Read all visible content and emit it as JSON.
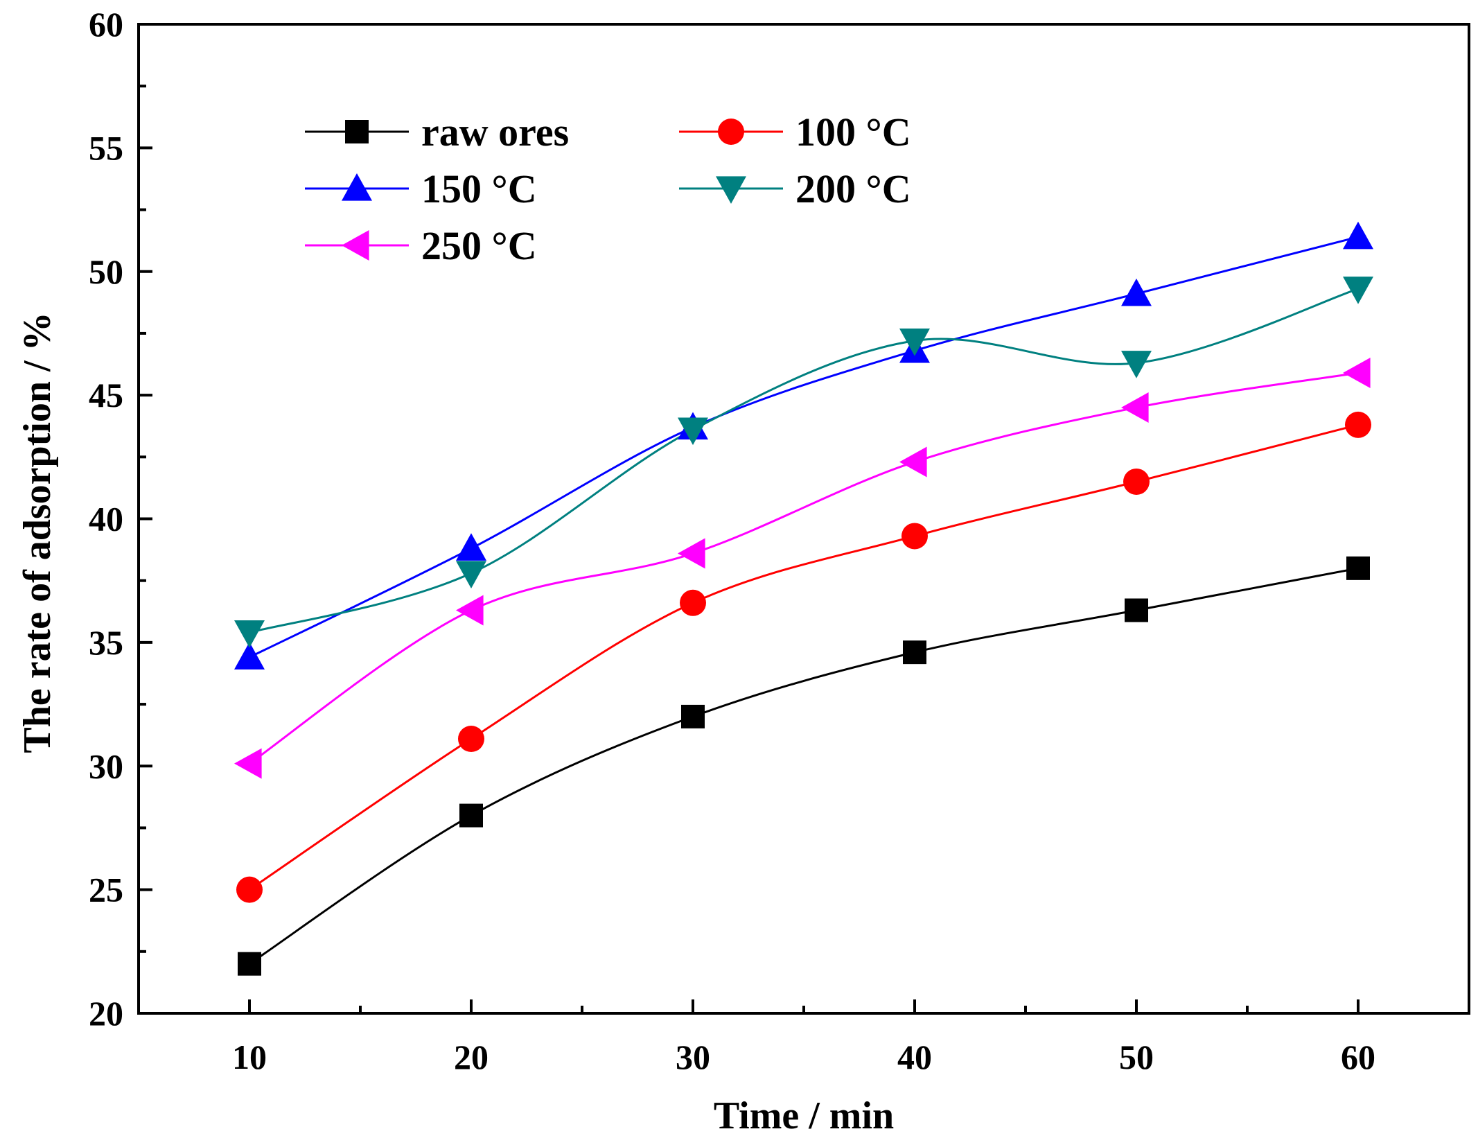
{
  "chart_data": {
    "type": "line",
    "title": "",
    "xlabel": "Time / min",
    "ylabel": "The  rate of adsorption / %",
    "xlim": [
      5,
      65
    ],
    "ylim": [
      20,
      60
    ],
    "xticks": [
      10,
      20,
      30,
      40,
      50,
      60
    ],
    "yticks": [
      20,
      25,
      30,
      35,
      40,
      45,
      50,
      55,
      60
    ],
    "grid": false,
    "legend_position": "top-left",
    "x": [
      10,
      20,
      30,
      40,
      50,
      60
    ],
    "series": [
      {
        "name": "raw ores",
        "color": "#000000",
        "marker": "square",
        "values": [
          22.0,
          28.0,
          32.0,
          34.6,
          36.3,
          38.0
        ]
      },
      {
        "name": "100 °C",
        "color": "#ff0000",
        "marker": "circle",
        "values": [
          25.0,
          31.1,
          36.6,
          39.3,
          41.5,
          43.8
        ]
      },
      {
        "name": "150 °C",
        "color": "#0000ff",
        "marker": "triangle-up",
        "values": [
          34.4,
          38.8,
          43.7,
          46.8,
          49.1,
          51.4
        ]
      },
      {
        "name": "200 °C",
        "color": "#008080",
        "marker": "triangle-down",
        "values": [
          35.4,
          37.8,
          43.6,
          47.2,
          46.3,
          49.3
        ]
      },
      {
        "name": "250 °C",
        "color": "#ff00ff",
        "marker": "triangle-left",
        "values": [
          30.1,
          36.3,
          38.6,
          42.3,
          44.5,
          45.9
        ]
      }
    ]
  }
}
